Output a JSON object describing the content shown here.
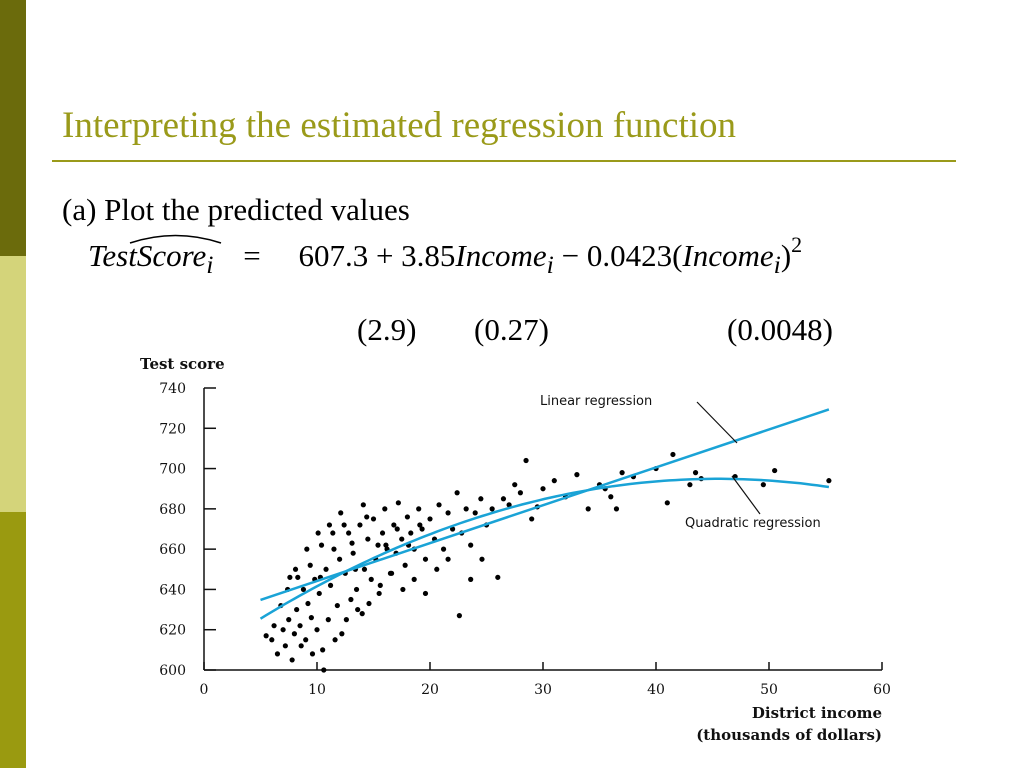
{
  "slide": {
    "title": "Interpreting the estimated regression function",
    "bullet": "(a) Plot the predicted values",
    "equation": {
      "lhs": "TestScore",
      "lhs_sub": "i",
      "equals": "=",
      "c0": "607.3",
      "plus": "+",
      "c1": "3.85",
      "var1": "Income",
      "var_sub": "i",
      "minus": "−",
      "c2": "0.0423",
      "open": "(",
      "close": ")",
      "exp": "2",
      "se0": "(2.9)",
      "se1": "(0.27)",
      "se2": "(0.0048)"
    },
    "sidebar_colors": [
      "#6b6b0c",
      "#d4d47a",
      "#9a9a10"
    ],
    "accent": "#9a9a1a"
  },
  "chart_data": {
    "type": "scatter",
    "ylabel": "Test score",
    "xlabel_line1": "District income",
    "xlabel_line2": "(thousands of dollars)",
    "xlim": [
      0,
      60
    ],
    "ylim": [
      600,
      740
    ],
    "xticks": [
      0,
      10,
      20,
      30,
      40,
      50,
      60
    ],
    "yticks": [
      600,
      620,
      640,
      660,
      680,
      700,
      720,
      740
    ],
    "series": [
      {
        "name": "Linear regression",
        "kind": "line",
        "intercept": 625.4,
        "slope": 1.88,
        "x_range": [
          5,
          55.3
        ],
        "color": "#1aa3d6"
      },
      {
        "name": "Quadratic regression",
        "kind": "line",
        "c0": 607.3,
        "c1": 3.85,
        "c2": -0.0423,
        "x_range": [
          5,
          55.3
        ],
        "color": "#1aa3d6"
      }
    ],
    "annotations": [
      "Linear regression",
      "Quadratic regression"
    ],
    "points": [
      [
        5.5,
        617
      ],
      [
        6.0,
        615
      ],
      [
        6.2,
        622
      ],
      [
        6.5,
        608
      ],
      [
        7.0,
        620
      ],
      [
        7.2,
        612
      ],
      [
        7.5,
        625
      ],
      [
        7.8,
        605
      ],
      [
        8.0,
        618
      ],
      [
        8.2,
        630
      ],
      [
        8.5,
        622
      ],
      [
        8.8,
        640
      ],
      [
        9.0,
        615
      ],
      [
        9.2,
        633
      ],
      [
        9.5,
        626
      ],
      [
        9.8,
        645
      ],
      [
        10.0,
        620
      ],
      [
        10.2,
        638
      ],
      [
        10.5,
        610
      ],
      [
        10.8,
        650
      ],
      [
        11.0,
        625
      ],
      [
        11.2,
        642
      ],
      [
        11.5,
        660
      ],
      [
        11.8,
        632
      ],
      [
        12.0,
        655
      ],
      [
        12.2,
        618
      ],
      [
        12.5,
        648
      ],
      [
        12.8,
        668
      ],
      [
        13.0,
        635
      ],
      [
        13.2,
        658
      ],
      [
        13.5,
        640
      ],
      [
        13.8,
        672
      ],
      [
        14.0,
        628
      ],
      [
        14.2,
        650
      ],
      [
        14.5,
        665
      ],
      [
        14.8,
        645
      ],
      [
        15.0,
        675
      ],
      [
        15.2,
        655
      ],
      [
        15.5,
        638
      ],
      [
        15.8,
        668
      ],
      [
        16.0,
        680
      ],
      [
        16.2,
        660
      ],
      [
        16.5,
        648
      ],
      [
        16.8,
        672
      ],
      [
        17.0,
        658
      ],
      [
        17.2,
        683
      ],
      [
        17.5,
        665
      ],
      [
        17.8,
        652
      ],
      [
        18.0,
        676
      ],
      [
        18.3,
        668
      ],
      [
        18.6,
        660
      ],
      [
        19.0,
        680
      ],
      [
        19.3,
        670
      ],
      [
        19.6,
        655
      ],
      [
        20.0,
        675
      ],
      [
        20.4,
        665
      ],
      [
        20.8,
        682
      ],
      [
        21.2,
        660
      ],
      [
        21.6,
        678
      ],
      [
        22.0,
        670
      ],
      [
        22.4,
        688
      ],
      [
        22.8,
        668
      ],
      [
        23.2,
        680
      ],
      [
        23.6,
        662
      ],
      [
        24.0,
        678
      ],
      [
        24.5,
        685
      ],
      [
        25.0,
        672
      ],
      [
        25.5,
        680
      ],
      [
        26.0,
        646
      ],
      [
        26.5,
        685
      ],
      [
        27.0,
        682
      ],
      [
        27.5,
        692
      ],
      [
        28.0,
        688
      ],
      [
        28.5,
        704
      ],
      [
        29.0,
        675
      ],
      [
        29.5,
        681
      ],
      [
        30.0,
        690
      ],
      [
        31.0,
        694
      ],
      [
        32.0,
        686
      ],
      [
        33.0,
        697
      ],
      [
        34.0,
        680
      ],
      [
        35.0,
        692
      ],
      [
        35.5,
        690
      ],
      [
        36.0,
        686
      ],
      [
        36.5,
        680
      ],
      [
        37.0,
        698
      ],
      [
        38.0,
        696
      ],
      [
        40.0,
        700
      ],
      [
        41.0,
        683
      ],
      [
        41.5,
        707
      ],
      [
        43.0,
        692
      ],
      [
        43.5,
        698
      ],
      [
        44.0,
        695
      ],
      [
        47.0,
        696
      ],
      [
        49.5,
        692
      ],
      [
        50.5,
        699
      ],
      [
        55.3,
        694
      ],
      [
        6.8,
        632
      ],
      [
        7.4,
        640
      ],
      [
        8.3,
        646
      ],
      [
        9.4,
        652
      ],
      [
        10.4,
        662
      ],
      [
        11.4,
        668
      ],
      [
        12.4,
        672
      ],
      [
        13.4,
        650
      ],
      [
        14.4,
        676
      ],
      [
        15.4,
        662
      ],
      [
        8.6,
        612
      ],
      [
        9.6,
        608
      ],
      [
        10.6,
        600
      ],
      [
        11.6,
        615
      ],
      [
        12.6,
        625
      ],
      [
        13.6,
        630
      ],
      [
        14.6,
        633
      ],
      [
        15.6,
        642
      ],
      [
        16.6,
        648
      ],
      [
        17.6,
        640
      ],
      [
        18.6,
        645
      ],
      [
        19.6,
        638
      ],
      [
        20.6,
        650
      ],
      [
        21.6,
        655
      ],
      [
        22.6,
        627
      ],
      [
        23.6,
        645
      ],
      [
        24.6,
        655
      ],
      [
        10.1,
        668
      ],
      [
        11.1,
        672
      ],
      [
        12.1,
        678
      ],
      [
        13.1,
        663
      ],
      [
        14.1,
        682
      ],
      [
        16.1,
        662
      ],
      [
        17.1,
        670
      ],
      [
        18.1,
        662
      ],
      [
        19.1,
        672
      ],
      [
        7.6,
        646
      ],
      [
        8.1,
        650
      ],
      [
        9.1,
        660
      ],
      [
        10.3,
        646
      ]
    ]
  }
}
